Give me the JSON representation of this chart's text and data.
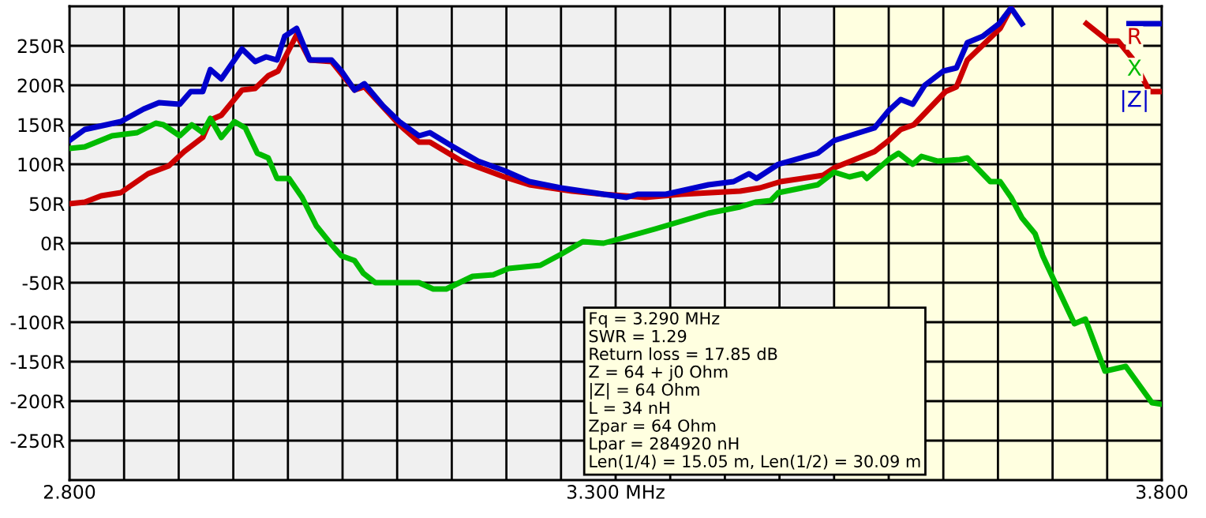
{
  "chart_data": {
    "type": "line",
    "xlim": [
      2.8,
      3.8
    ],
    "xticks": [
      {
        "value": 2.8,
        "label": "2.800"
      },
      {
        "value": 2.85,
        "label": null
      },
      {
        "value": 2.9,
        "label": null
      },
      {
        "value": 2.95,
        "label": null
      },
      {
        "value": 3.0,
        "label": null
      },
      {
        "value": 3.05,
        "label": null
      },
      {
        "value": 3.1,
        "label": null
      },
      {
        "value": 3.15,
        "label": null
      },
      {
        "value": 3.2,
        "label": null
      },
      {
        "value": 3.25,
        "label": null
      },
      {
        "value": 3.3,
        "label": "3.300 MHz"
      },
      {
        "value": 3.35,
        "label": null
      },
      {
        "value": 3.4,
        "label": null
      },
      {
        "value": 3.45,
        "label": null
      },
      {
        "value": 3.5,
        "label": null
      },
      {
        "value": 3.55,
        "label": null
      },
      {
        "value": 3.6,
        "label": null
      },
      {
        "value": 3.65,
        "label": null
      },
      {
        "value": 3.7,
        "label": null
      },
      {
        "value": 3.75,
        "label": null
      },
      {
        "value": 3.8,
        "label": "3.800"
      }
    ],
    "ylim": [
      -300,
      300
    ],
    "yticks": [
      {
        "value": -250,
        "label": "-250R"
      },
      {
        "value": -200,
        "label": "-200R"
      },
      {
        "value": -150,
        "label": "-150R"
      },
      {
        "value": -100,
        "label": "-100R"
      },
      {
        "value": -50,
        "label": "-50R"
      },
      {
        "value": 0,
        "label": "0R"
      },
      {
        "value": 50,
        "label": "50R"
      },
      {
        "value": 100,
        "label": "100R"
      },
      {
        "value": 150,
        "label": "150R"
      },
      {
        "value": 200,
        "label": "200R"
      },
      {
        "value": 250,
        "label": "250R"
      }
    ],
    "grid": true,
    "line_style": "solid",
    "marker": "none",
    "bands": [
      {
        "axis": "x",
        "from": 3.5,
        "to": 3.8,
        "color": "#ffffe0"
      }
    ],
    "annotations": [
      "Fq = 3.290 MHz\nSWR = 1.29\nReturn loss = 17.85 dB\nZ = 64 + j0 Ohm\n|Z| = 64 Ohm\nL = 34 nH\nZpar = 64 Ohm\nLpar = 284920 nH\nLen(1/4) = 15.05 m, Len(1/2) = 30.09 m"
    ],
    "series": [
      {
        "name": "R",
        "color": "#cc0000",
        "x": [
          2.8,
          2.814,
          2.829,
          2.847,
          2.872,
          2.891,
          2.905,
          2.922,
          2.929,
          2.939,
          2.958,
          2.97,
          2.982,
          2.991,
          3.008,
          3.02,
          3.04,
          3.061,
          3.07,
          3.102,
          3.12,
          3.13,
          3.159,
          3.198,
          3.221,
          3.26,
          3.289,
          3.327,
          3.36,
          3.414,
          3.432,
          3.451,
          3.49,
          3.501,
          3.537,
          3.55,
          3.561,
          3.573,
          3.602,
          3.612,
          3.622,
          3.652,
          3.662,
          3.681,
          3.72,
          3.731,
          3.751,
          3.76,
          3.773,
          3.789,
          3.8
        ],
        "values": [
          50,
          52,
          60,
          64,
          88,
          98,
          116,
          134,
          156,
          162,
          194,
          196,
          212,
          218,
          264,
          232,
          230,
          194,
          198,
          150,
          128,
          128,
          104,
          84,
          74,
          66,
          62,
          58,
          62,
          66,
          70,
          78,
          86,
          96,
          116,
          130,
          144,
          150,
          192,
          198,
          232,
          272,
          298,
          null,
          null,
          278,
          256,
          256,
          234,
          192,
          192
        ]
      },
      {
        "name": "X",
        "color": "#00bb00",
        "x": [
          2.8,
          2.814,
          2.839,
          2.862,
          2.879,
          2.886,
          2.901,
          2.912,
          2.922,
          2.929,
          2.939,
          2.951,
          2.961,
          2.972,
          2.982,
          2.99,
          3.001,
          3.013,
          3.026,
          3.04,
          3.049,
          3.061,
          3.069,
          3.08,
          3.12,
          3.133,
          3.145,
          3.169,
          3.188,
          3.202,
          3.231,
          3.25,
          3.27,
          3.289,
          3.336,
          3.385,
          3.414,
          3.428,
          3.442,
          3.449,
          3.485,
          3.5,
          3.514,
          3.526,
          3.53,
          3.55,
          3.559,
          3.572,
          3.58,
          3.595,
          3.615,
          3.622,
          3.643,
          3.652,
          3.662,
          3.672,
          3.684,
          3.691,
          3.701,
          3.72,
          3.73,
          3.748,
          3.767,
          3.791,
          3.8
        ],
        "values": [
          120,
          122,
          136,
          140,
          152,
          150,
          136,
          150,
          140,
          158,
          134,
          154,
          146,
          114,
          108,
          82,
          82,
          58,
          22,
          -2,
          -16,
          -22,
          -38,
          -50,
          -50,
          -58,
          -58,
          -42,
          -40,
          -32,
          -28,
          -14,
          2,
          0,
          18,
          38,
          46,
          52,
          54,
          64,
          74,
          90,
          84,
          88,
          82,
          106,
          114,
          100,
          110,
          104,
          106,
          108,
          78,
          78,
          58,
          32,
          12,
          -16,
          -46,
          -102,
          -96,
          -162,
          -156,
          -202,
          -204
        ]
      },
      {
        "name": "|Z|",
        "color": "#0000cc",
        "x": [
          2.8,
          2.814,
          2.847,
          2.868,
          2.882,
          2.901,
          2.911,
          2.922,
          2.929,
          2.939,
          2.958,
          2.97,
          2.98,
          2.99,
          2.997,
          3.008,
          3.02,
          3.04,
          3.049,
          3.061,
          3.07,
          3.087,
          3.102,
          3.12,
          3.13,
          3.149,
          3.174,
          3.198,
          3.221,
          3.25,
          3.289,
          3.31,
          3.32,
          3.346,
          3.385,
          3.408,
          3.422,
          3.429,
          3.449,
          3.485,
          3.5,
          3.523,
          3.537,
          3.55,
          3.561,
          3.572,
          3.583,
          3.6,
          3.612,
          3.622,
          3.636,
          3.651,
          3.662,
          3.672,
          3.681,
          3.722,
          3.76,
          3.77,
          3.787,
          3.8
        ],
        "values": [
          130,
          144,
          154,
          170,
          178,
          176,
          192,
          192,
          220,
          208,
          246,
          230,
          236,
          232,
          262,
          272,
          232,
          232,
          218,
          194,
          202,
          174,
          154,
          136,
          140,
          124,
          104,
          92,
          78,
          70,
          62,
          58,
          62,
          62,
          74,
          78,
          88,
          82,
          100,
          114,
          130,
          140,
          146,
          168,
          182,
          176,
          200,
          218,
          222,
          254,
          262,
          278,
          298,
          278,
          null,
          null,
          null,
          278,
          278,
          278
        ]
      }
    ]
  }
}
